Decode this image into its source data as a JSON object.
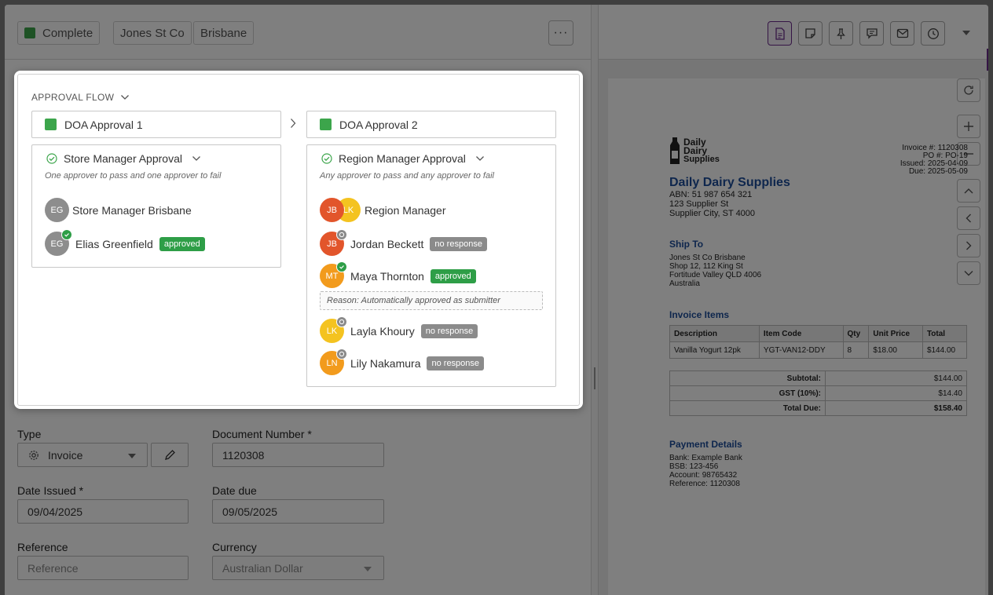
{
  "toolbar": {
    "status_label": "Complete",
    "store_chip": "Jones St Co",
    "location_chip": "Brisbane",
    "more_label": "···"
  },
  "approval_flow": {
    "header": "APPROVAL FLOW",
    "stages": [
      {
        "label": "DOA Approval 1"
      },
      {
        "label": "DOA Approval 2"
      }
    ],
    "card1": {
      "title": "Store Manager Approval",
      "rule": "One approver to pass and one approver to fail",
      "group_initials": "EG",
      "group_name": "Store Manager Brisbane",
      "person_initials": "EG",
      "person_name": "Elias Greenfield",
      "person_status": "approved"
    },
    "card2": {
      "title": "Region Manager Approval",
      "rule": "Any approver to pass and any approver to fail",
      "group_initials_a": "JB",
      "group_initials_b": "LK",
      "group_name": "Region Manager",
      "people": [
        {
          "initials": "JB",
          "name": "Jordan Beckett",
          "status": "no response"
        },
        {
          "initials": "MT",
          "name": "Maya Thornton",
          "status": "approved"
        },
        {
          "initials": "LK",
          "name": "Layla Khoury",
          "status": "no response"
        },
        {
          "initials": "LN",
          "name": "Lily Nakamura",
          "status": "no response"
        }
      ],
      "reason": "Reason: Automatically approved as submitter"
    }
  },
  "form": {
    "type_label": "Type",
    "type_value": "Invoice",
    "docnum_label": "Document Number *",
    "docnum_value": "1120308",
    "date_issued_label": "Date Issued *",
    "date_issued_value": "09/04/2025",
    "date_due_label": "Date due",
    "date_due_value": "09/05/2025",
    "reference_label": "Reference",
    "reference_placeholder": "Reference",
    "currency_label": "Currency",
    "currency_value": "Australian Dollar"
  },
  "invoice": {
    "logo_line1": "Daily",
    "logo_line2": "Dairy",
    "logo_line3": "Supplies",
    "meta_invoice": "Invoice #: 1120308",
    "meta_po": "PO #: PO-19",
    "meta_issued": "Issued: 2025-04-09",
    "meta_due": "Due: 2025-05-09",
    "company_name": "Daily Dairy Supplies",
    "abn": "ABN: 51 987 654 321",
    "addr1": "123 Supplier St",
    "addr2": "Supplier City, ST 4000",
    "ship_to_heading": "Ship To",
    "ship1": "Jones St Co Brisbane",
    "ship2": "Shop 12, 112 King St",
    "ship3": "Fortitude Valley QLD 4006",
    "ship4": "Australia",
    "items_heading": "Invoice Items",
    "col_desc": "Description",
    "col_code": "Item Code",
    "col_qty": "Qty",
    "col_price": "Unit Price",
    "col_total": "Total",
    "item_desc": "Vanilla Yogurt 12pk",
    "item_code": "YGT-VAN12-DDY",
    "item_qty": "8",
    "item_price": "$18.00",
    "item_total": "$144.00",
    "subtotal_label": "Subtotal:",
    "subtotal_value": "$144.00",
    "gst_label": "GST (10%):",
    "gst_value": "$14.40",
    "total_label": "Total Due:",
    "total_value": "$158.40",
    "payment_heading": "Payment Details",
    "bank": "Bank: Example Bank",
    "bsb": "BSB: 123-456",
    "account": "Account: 98765432",
    "reference": "Reference: 1120308"
  }
}
